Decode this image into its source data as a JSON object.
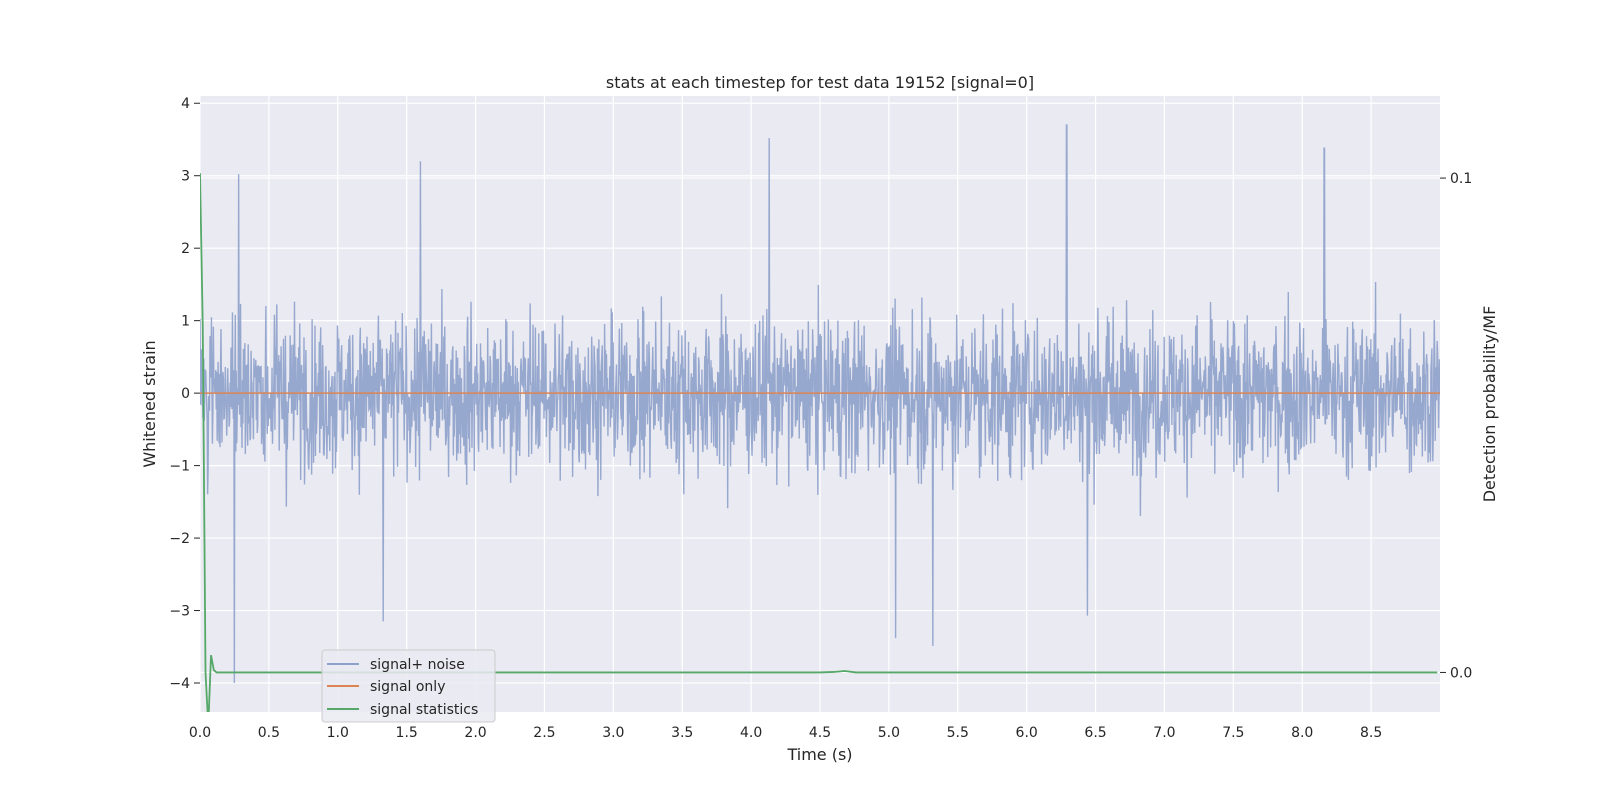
{
  "chart_data": {
    "type": "line",
    "title": "stats at each timestep for test data 19152 [signal=0]",
    "xlabel": "Time (s)",
    "ylabel": "Whitened strain",
    "y2label": "Detection probability/MF",
    "xlim": [
      0,
      9.0
    ],
    "ylim": [
      -4.4,
      4.1
    ],
    "y2lim": [
      -0.008,
      0.1166
    ],
    "xticks": [
      "0.0",
      "0.5",
      "1.0",
      "1.5",
      "2.0",
      "2.5",
      "3.0",
      "3.5",
      "4.0",
      "4.5",
      "5.0",
      "5.5",
      "6.0",
      "6.5",
      "7.0",
      "7.5",
      "8.0",
      "8.5"
    ],
    "yticks": [
      "−4",
      "−3",
      "−2",
      "−1",
      "0",
      "1",
      "2",
      "3",
      "4"
    ],
    "y2ticks": [
      "0.0",
      "0.1"
    ],
    "grid": true,
    "legend_position": "lower-left",
    "series": [
      {
        "name": "signal+ noise",
        "color": "#8ea1cb",
        "axis": "left",
        "sample_rate_hz": 2048,
        "approx_range": [
          -4.0,
          3.7
        ],
        "notable_peaks": [
          [
            0.28,
            3.02
          ],
          [
            1.6,
            3.2
          ],
          [
            4.13,
            3.52
          ],
          [
            6.29,
            3.71
          ],
          [
            8.16,
            3.38
          ]
        ],
        "notable_troughs": [
          [
            0.25,
            -4.0
          ],
          [
            1.33,
            -3.15
          ],
          [
            5.05,
            -3.38
          ],
          [
            5.32,
            -3.49
          ],
          [
            6.44,
            -3.07
          ]
        ]
      },
      {
        "name": "signal only",
        "color": "#dd8452",
        "axis": "left",
        "x": [
          0,
          8.999
        ],
        "values": [
          0,
          0
        ]
      },
      {
        "name": "signal statistics",
        "color": "#55a868",
        "axis": "right",
        "x": [
          0.0,
          0.02,
          0.04,
          0.06,
          0.08,
          0.1,
          0.12,
          4.5,
          4.6,
          4.68,
          4.76,
          8.98
        ],
        "values": [
          0.101,
          0.07,
          0.0,
          -0.0108,
          0.0035,
          0.0005,
          0.0,
          0.0,
          0.0001,
          0.0003,
          0.0,
          0.0
        ]
      }
    ]
  }
}
